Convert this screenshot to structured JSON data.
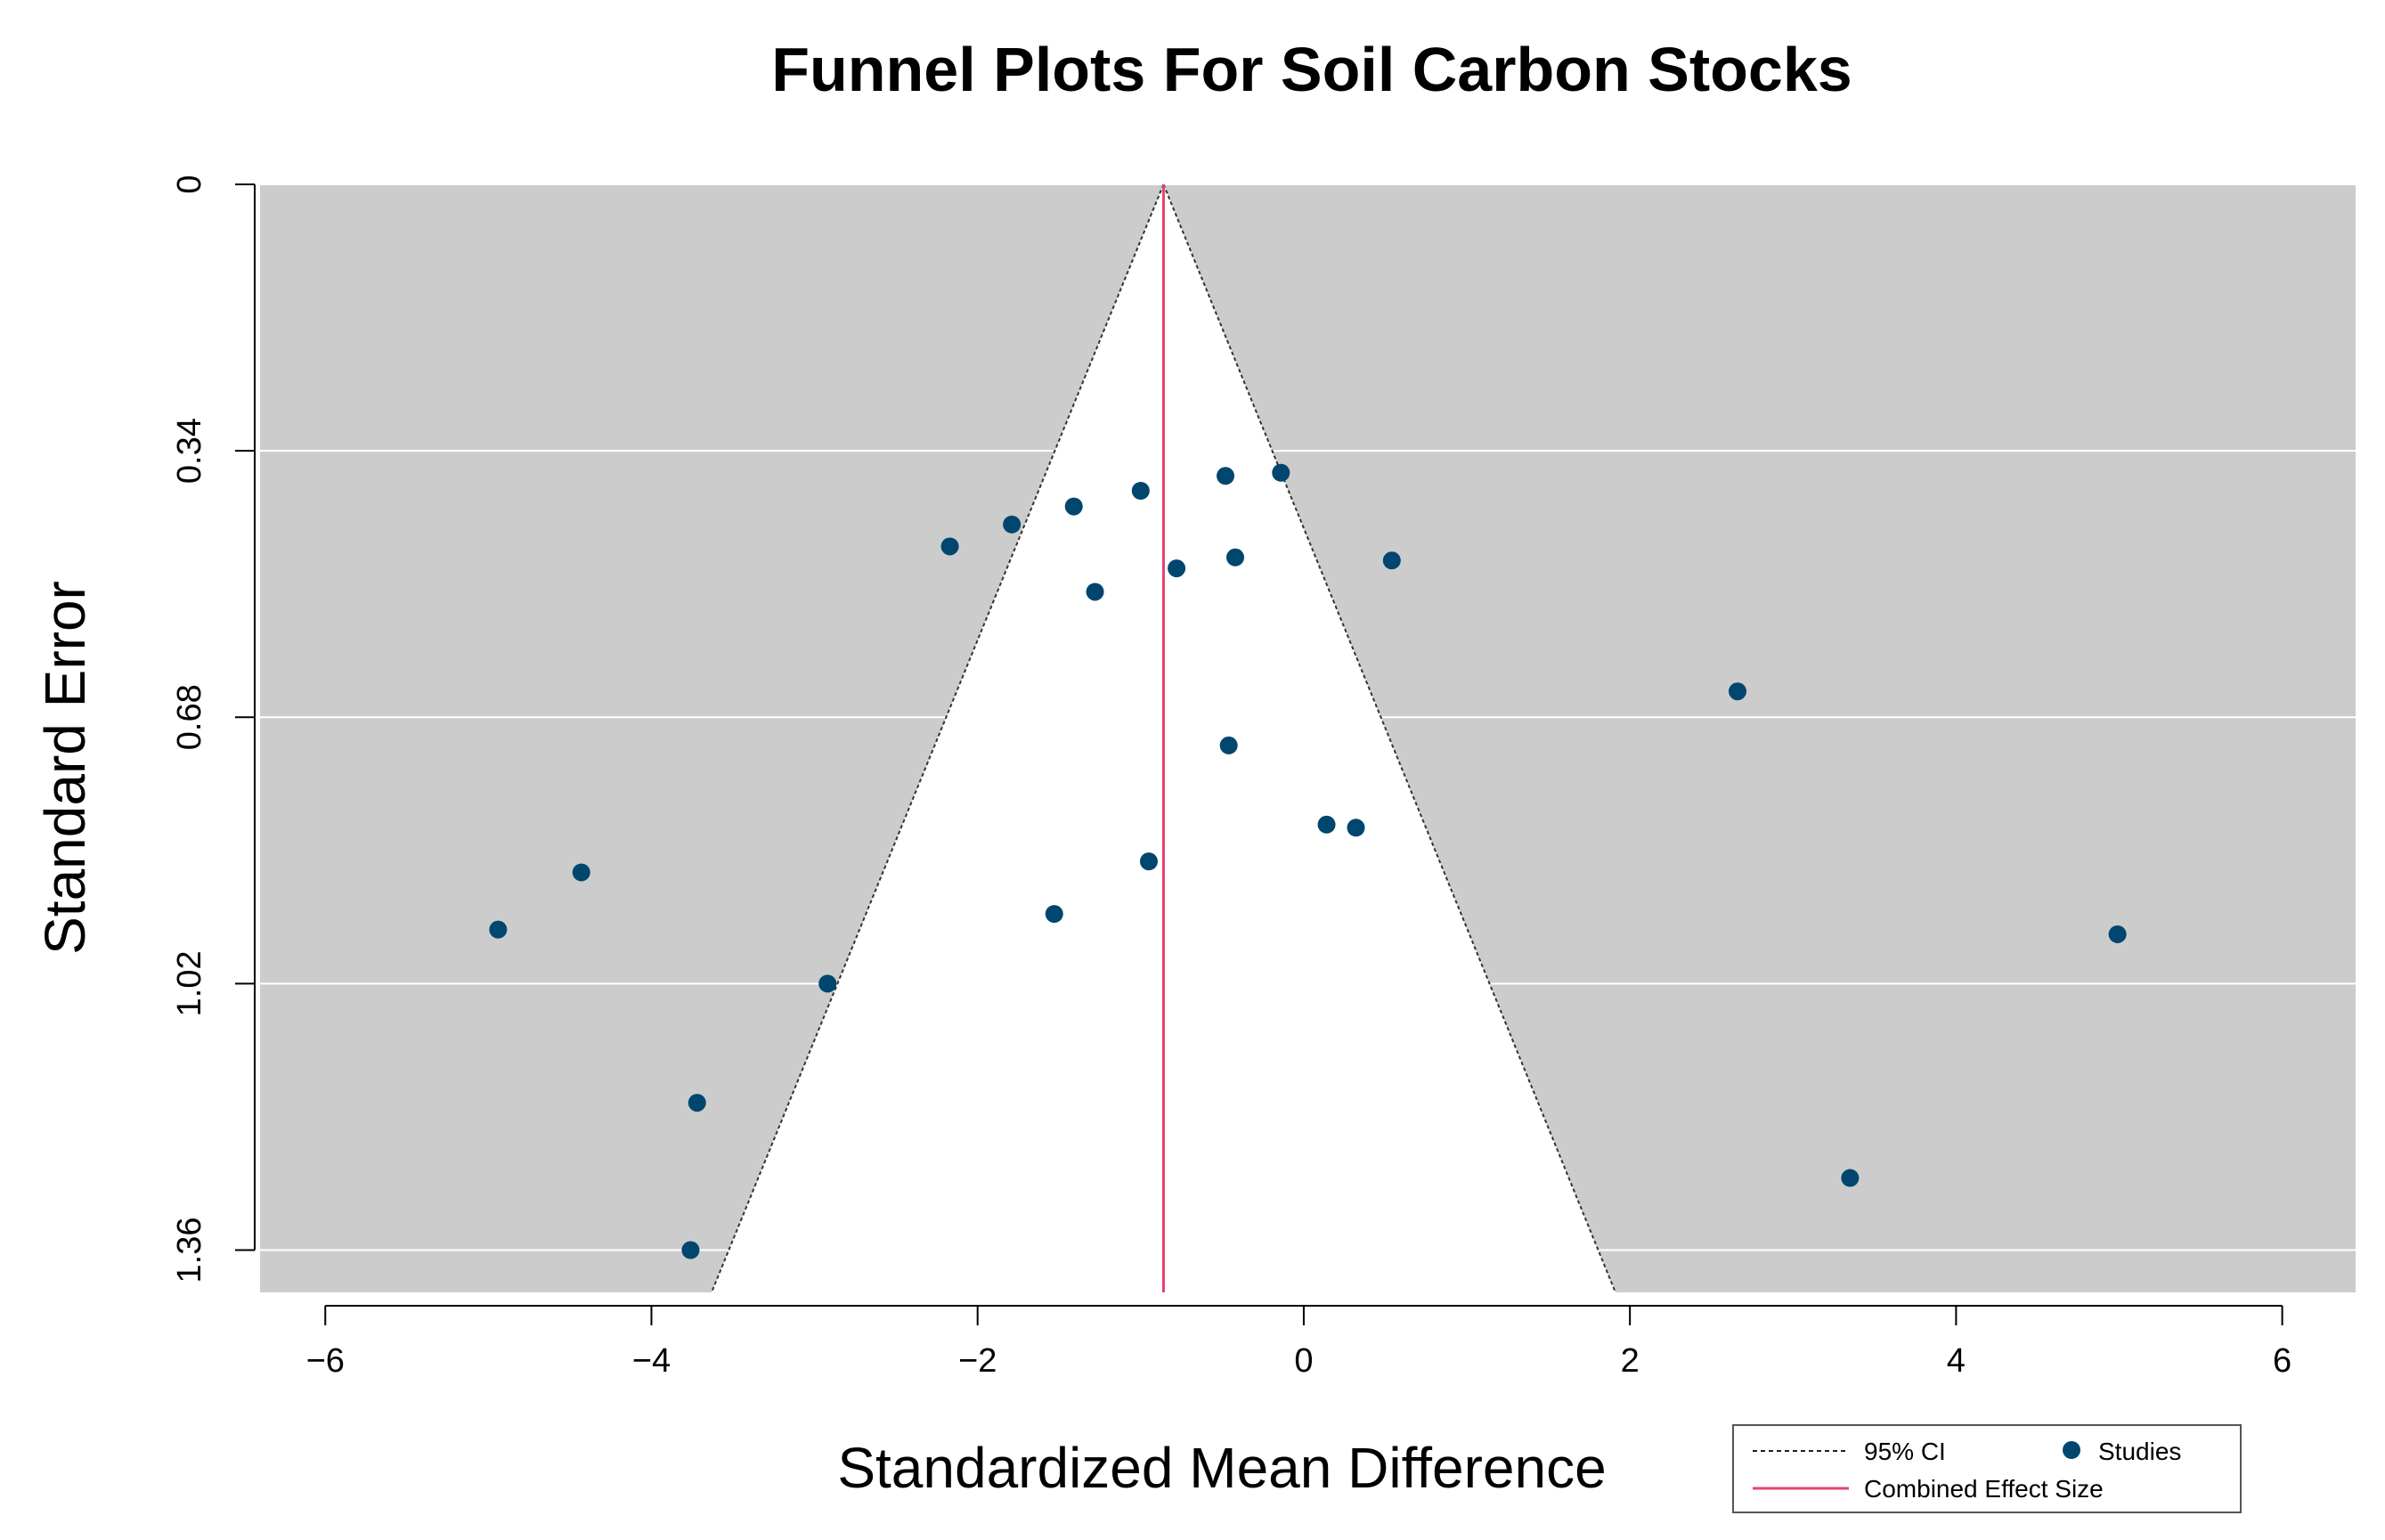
{
  "chart_data": {
    "type": "scatter",
    "title": "Funnel Plots For Soil Carbon Stocks",
    "xlabel": "Standardized Mean Difference",
    "ylabel": "Standard Error",
    "xlim": [
      -6.4,
      6.45
    ],
    "ylim": [
      0,
      1.414
    ],
    "y_reversed": true,
    "x_ticks": [
      -6,
      -4,
      -2,
      0,
      2,
      4,
      6
    ],
    "x_tick_labels": [
      "−6",
      "−4",
      "−2",
      "0",
      "2",
      "4",
      "6"
    ],
    "y_ticks": [
      0,
      0.34,
      0.68,
      1.02,
      1.36
    ],
    "y_tick_labels": [
      "0",
      "0.34",
      "0.68",
      "1.02",
      "1.36"
    ],
    "combined_effect": -0.86,
    "ci_z": 1.96,
    "colors": {
      "panel": "#cccccc",
      "funnel": "#ffffff",
      "grid": "#ffffff",
      "combined_line": "#e8426d",
      "points": "#00466e"
    },
    "legend": {
      "position": "bottom-right",
      "ci_label": "95% CI",
      "studies_label": "Studies",
      "combined_label": "Combined Effect Size"
    },
    "series": [
      {
        "name": "Studies",
        "x": [
          -0.14,
          -0.48,
          -1.0,
          -1.41,
          -1.79,
          -2.17,
          -0.42,
          0.54,
          -0.78,
          -1.28,
          2.66,
          -0.46,
          0.14,
          0.32,
          -0.95,
          -1.53,
          -4.94,
          -4.43,
          -2.92,
          -3.72,
          -3.76,
          3.35,
          4.99
        ],
        "y": [
          0.368,
          0.372,
          0.391,
          0.411,
          0.434,
          0.462,
          0.476,
          0.48,
          0.49,
          0.52,
          0.647,
          0.716,
          0.817,
          0.821,
          0.864,
          0.931,
          0.951,
          0.878,
          1.02,
          1.172,
          1.36,
          1.268,
          0.957
        ]
      }
    ]
  }
}
